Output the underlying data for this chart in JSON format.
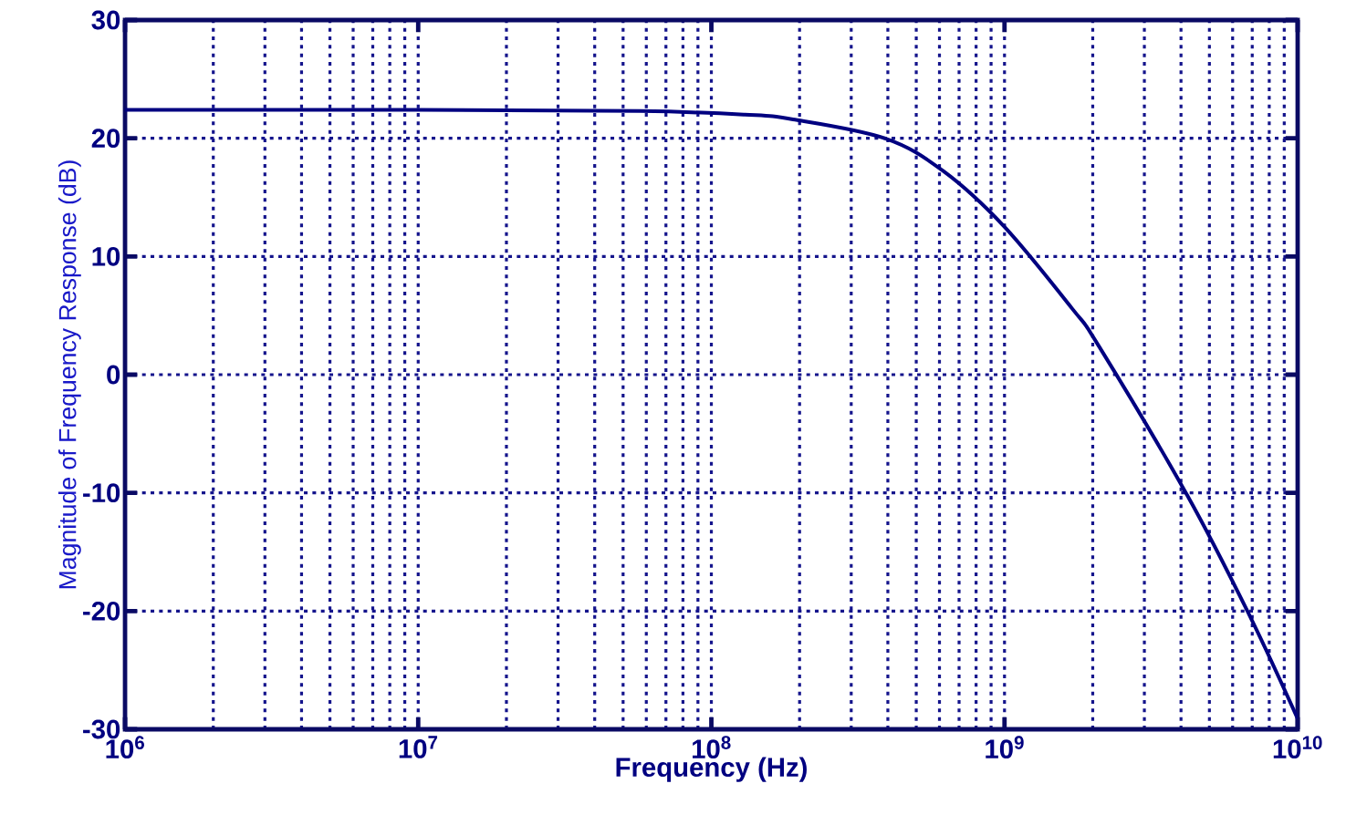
{
  "chart_data": {
    "type": "line",
    "xlabel": "Frequency (Hz)",
    "ylabel": "Magnitude of Frequency Response (dB)",
    "log": "x",
    "grid": true,
    "line_style": "solid",
    "marker": "none",
    "xlim": [
      1000000,
      10000000000
    ],
    "ylim": [
      -30,
      30
    ],
    "xticks": [
      {
        "value": 1000000,
        "label": "10$^{6}$"
      },
      {
        "value": 10000000,
        "label": "10$^{7}$"
      },
      {
        "value": 100000000,
        "label": "10$^{8}$"
      },
      {
        "value": 1000000000,
        "label": "10$^{9}$"
      },
      {
        "value": 10000000000,
        "label": "10$^{10}$"
      }
    ],
    "yticks": [
      -30,
      -20,
      -10,
      0,
      10,
      20,
      30
    ],
    "series": [
      {
        "color": "#000080",
        "x": [
          1000000,
          10000000,
          57000000,
          130000000,
          190000000,
          390000000,
          620000000,
          1000000000,
          1700000000,
          2100000000,
          4200000000,
          6800000000,
          10000000000
        ],
        "values": [
          22.4,
          22.4,
          22.3,
          22.0,
          21.6,
          20.0,
          17.2,
          12.5,
          5.6,
          2.4,
          -10.2,
          -20.2,
          -29.1
        ]
      }
    ]
  }
}
